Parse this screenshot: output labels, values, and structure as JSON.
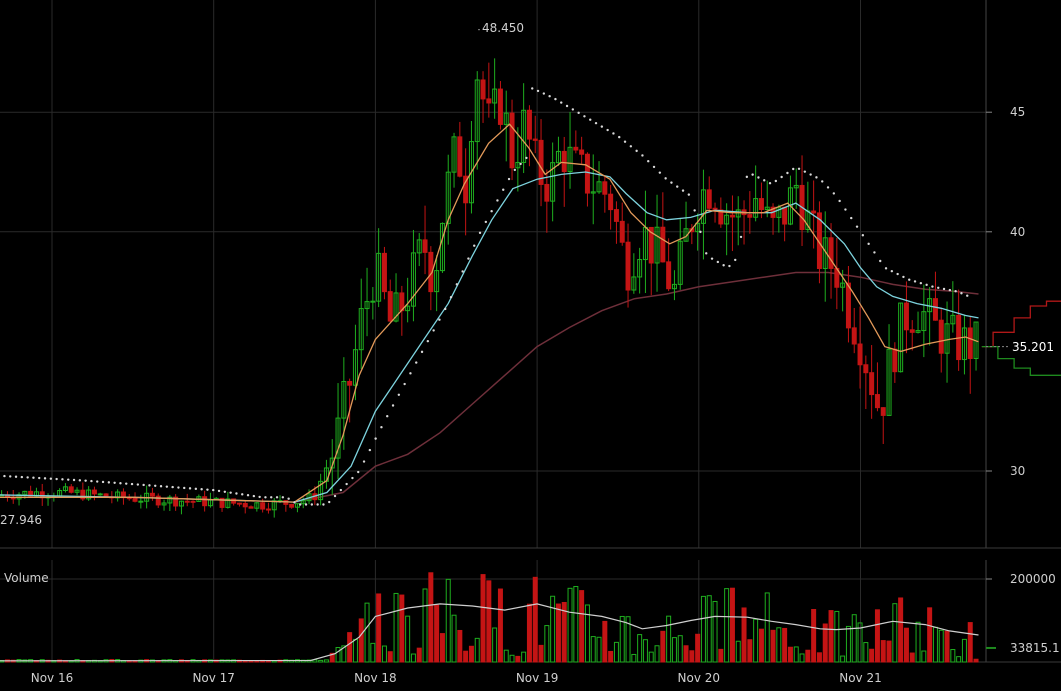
{
  "colors": {
    "background": "#000000",
    "grid": "#2a2a2a",
    "up": "#1fae1f",
    "down": "#c41414",
    "ema_fast": "#e39a5a",
    "ema_slow": "#7dd3de",
    "ma_long": "#6e2f3a",
    "sar": "#d8d8d8",
    "volume_ma": "#cfcfcf",
    "axis_text": "#cfcfcf",
    "depth_bid": "#1e8a1e",
    "depth_ask": "#b01818"
  },
  "chart_data": [
    {
      "type": "line",
      "subtype": "candlestick",
      "x_tick_labels": [
        "Nov 16",
        "Nov 17",
        "Nov 18",
        "Nov 19",
        "Nov 20",
        "Nov 21"
      ],
      "x_days": [
        16,
        17,
        18,
        19,
        20,
        21
      ],
      "x_range": [
        15.67,
        21.73
      ],
      "y_ticks": [
        30,
        40,
        45
      ],
      "ylim": [
        26.0,
        49.0
      ],
      "y_scale": "linear",
      "grid": true,
      "annotations": {
        "high_label": "48.450",
        "high_day": 18.63,
        "high_value": 48.45,
        "low_label": "27.946",
        "low_day": 15.67,
        "low_value": 27.946,
        "last_label": "35.201",
        "last_value": 35.201
      },
      "price_path": [
        [
          15.67,
          29.0
        ],
        [
          15.9,
          29.1
        ],
        [
          16.1,
          29.1
        ],
        [
          16.4,
          28.9
        ],
        [
          16.7,
          28.8
        ],
        [
          17.0,
          28.7
        ],
        [
          17.3,
          28.6
        ],
        [
          17.5,
          28.7
        ],
        [
          17.62,
          28.9
        ],
        [
          17.75,
          31.0
        ],
        [
          17.85,
          34.0
        ],
        [
          17.92,
          36.5
        ],
        [
          18.0,
          38.5
        ],
        [
          18.1,
          36.0
        ],
        [
          18.2,
          37.5
        ],
        [
          18.3,
          39.5
        ],
        [
          18.36,
          38.0
        ],
        [
          18.42,
          41.0
        ],
        [
          18.5,
          43.5
        ],
        [
          18.56,
          42.0
        ],
        [
          18.62,
          47.0
        ],
        [
          18.7,
          44.5
        ],
        [
          18.78,
          45.5
        ],
        [
          18.85,
          43.0
        ],
        [
          18.92,
          44.5
        ],
        [
          19.0,
          42.5
        ],
        [
          19.08,
          42.0
        ],
        [
          19.15,
          43.5
        ],
        [
          19.25,
          42.5
        ],
        [
          19.35,
          42.0
        ],
        [
          19.45,
          41.5
        ],
        [
          19.55,
          38.5
        ],
        [
          19.65,
          40.0
        ],
        [
          19.75,
          39.0
        ],
        [
          19.85,
          37.5
        ],
        [
          19.93,
          40.0
        ],
        [
          20.0,
          41.5
        ],
        [
          20.08,
          42.0
        ],
        [
          20.15,
          41.0
        ],
        [
          20.25,
          40.5
        ],
        [
          20.35,
          41.5
        ],
        [
          20.45,
          40.0
        ],
        [
          20.55,
          41.0
        ],
        [
          20.6,
          42.0
        ],
        [
          20.67,
          40.5
        ],
        [
          20.75,
          39.0
        ],
        [
          20.85,
          38.5
        ],
        [
          20.92,
          37.0
        ],
        [
          21.0,
          35.5
        ],
        [
          21.06,
          34.0
        ],
        [
          21.12,
          32.5
        ],
        [
          21.2,
          35.0
        ],
        [
          21.28,
          36.5
        ],
        [
          21.36,
          36.8
        ],
        [
          21.45,
          36.0
        ],
        [
          21.55,
          35.5
        ],
        [
          21.65,
          35.3
        ],
        [
          21.73,
          35.2
        ]
      ],
      "ema_fast_path": [
        [
          15.67,
          28.9
        ],
        [
          16.5,
          28.9
        ],
        [
          17.5,
          28.7
        ],
        [
          17.7,
          29.6
        ],
        [
          17.8,
          31.5
        ],
        [
          17.9,
          34.0
        ],
        [
          18.0,
          35.5
        ],
        [
          18.2,
          37.0
        ],
        [
          18.35,
          38.3
        ],
        [
          18.45,
          40.5
        ],
        [
          18.55,
          42.0
        ],
        [
          18.7,
          43.7
        ],
        [
          18.83,
          44.5
        ],
        [
          18.95,
          43.5
        ],
        [
          19.05,
          42.4
        ],
        [
          19.15,
          42.9
        ],
        [
          19.3,
          42.8
        ],
        [
          19.45,
          42.2
        ],
        [
          19.58,
          40.8
        ],
        [
          19.7,
          40.0
        ],
        [
          19.82,
          39.5
        ],
        [
          19.92,
          39.8
        ],
        [
          20.05,
          40.9
        ],
        [
          20.2,
          40.8
        ],
        [
          20.4,
          40.8
        ],
        [
          20.55,
          41.2
        ],
        [
          20.65,
          40.5
        ],
        [
          20.75,
          39.5
        ],
        [
          20.85,
          38.5
        ],
        [
          20.95,
          37.5
        ],
        [
          21.05,
          36.4
        ],
        [
          21.15,
          35.2
        ],
        [
          21.25,
          35.0
        ],
        [
          21.4,
          35.3
        ],
        [
          21.55,
          35.5
        ],
        [
          21.65,
          35.6
        ],
        [
          21.73,
          35.4
        ]
      ],
      "ema_slow_path": [
        [
          15.67,
          29.0
        ],
        [
          16.5,
          28.9
        ],
        [
          17.5,
          28.7
        ],
        [
          17.7,
          29.1
        ],
        [
          17.85,
          30.2
        ],
        [
          18.0,
          32.5
        ],
        [
          18.15,
          34.0
        ],
        [
          18.3,
          35.5
        ],
        [
          18.45,
          37.0
        ],
        [
          18.6,
          39.0
        ],
        [
          18.72,
          40.5
        ],
        [
          18.85,
          41.8
        ],
        [
          19.0,
          42.2
        ],
        [
          19.15,
          42.4
        ],
        [
          19.3,
          42.5
        ],
        [
          19.45,
          42.3
        ],
        [
          19.55,
          41.6
        ],
        [
          19.68,
          40.8
        ],
        [
          19.8,
          40.5
        ],
        [
          19.95,
          40.6
        ],
        [
          20.1,
          40.9
        ],
        [
          20.3,
          40.8
        ],
        [
          20.45,
          40.8
        ],
        [
          20.6,
          41.2
        ],
        [
          20.75,
          40.5
        ],
        [
          20.9,
          39.5
        ],
        [
          21.0,
          38.5
        ],
        [
          21.1,
          37.7
        ],
        [
          21.2,
          37.3
        ],
        [
          21.35,
          37.0
        ],
        [
          21.5,
          36.8
        ],
        [
          21.65,
          36.5
        ],
        [
          21.73,
          36.4
        ]
      ],
      "ma_long_path": [
        [
          17.5,
          28.7
        ],
        [
          17.8,
          29.1
        ],
        [
          18.0,
          30.2
        ],
        [
          18.2,
          30.7
        ],
        [
          18.4,
          31.6
        ],
        [
          18.6,
          32.8
        ],
        [
          18.8,
          34.0
        ],
        [
          19.0,
          35.2
        ],
        [
          19.2,
          36.0
        ],
        [
          19.4,
          36.7
        ],
        [
          19.6,
          37.2
        ],
        [
          19.8,
          37.4
        ],
        [
          20.0,
          37.7
        ],
        [
          20.2,
          37.9
        ],
        [
          20.4,
          38.1
        ],
        [
          20.6,
          38.3
        ],
        [
          20.8,
          38.3
        ],
        [
          21.0,
          38.1
        ],
        [
          21.2,
          37.8
        ],
        [
          21.4,
          37.6
        ],
        [
          21.6,
          37.5
        ],
        [
          21.73,
          37.4
        ]
      ],
      "sar_path": [
        [
          15.67,
          29.8
        ],
        [
          16.2,
          29.6
        ],
        [
          16.6,
          29.4
        ],
        [
          17.0,
          29.2
        ],
        [
          17.3,
          28.9
        ],
        [
          17.45,
          28.9
        ],
        [
          17.52,
          28.6
        ],
        [
          17.7,
          28.6
        ],
        [
          17.9,
          30.0
        ],
        [
          18.05,
          32.0
        ],
        [
          18.25,
          34.5
        ],
        [
          18.45,
          37.0
        ],
        [
          18.65,
          40.0
        ],
        [
          18.85,
          42.5
        ],
        [
          18.95,
          43.2
        ],
        [
          18.97,
          46.0
        ],
        [
          19.1,
          45.6
        ],
        [
          19.3,
          44.8
        ],
        [
          19.5,
          44.0
        ],
        [
          19.65,
          43.2
        ],
        [
          19.8,
          42.2
        ],
        [
          19.95,
          41.5
        ],
        [
          20.05,
          39.0
        ],
        [
          20.18,
          38.5
        ],
        [
          20.25,
          39.0
        ],
        [
          20.3,
          42.5
        ],
        [
          20.45,
          42.0
        ],
        [
          20.6,
          42.7
        ],
        [
          20.75,
          42.2
        ],
        [
          20.85,
          41.5
        ],
        [
          20.95,
          40.5
        ],
        [
          21.05,
          39.5
        ],
        [
          21.15,
          38.5
        ],
        [
          21.3,
          38.0
        ],
        [
          21.45,
          37.7
        ],
        [
          21.6,
          37.5
        ],
        [
          21.67,
          37.3
        ]
      ],
      "ask_depth": [
        [
          35.2,
          21.75
        ],
        [
          35.8,
          21.82
        ],
        [
          36.4,
          21.95
        ],
        [
          36.9,
          22.05
        ],
        [
          37.1,
          22.15
        ],
        [
          37.2,
          22.3
        ]
      ],
      "bid_depth": [
        [
          35.2,
          21.75
        ],
        [
          34.7,
          21.85
        ],
        [
          34.3,
          21.95
        ],
        [
          34.0,
          22.05
        ],
        [
          33.9,
          22.3
        ]
      ]
    },
    {
      "type": "bar",
      "title": "Volume",
      "ylim": [
        0,
        215000
      ],
      "y_ticks": [
        200000,
        33815.1
      ],
      "y_tick_labels": [
        "200000",
        "33815.1"
      ],
      "grid": true,
      "volume_path": [
        [
          15.67,
          3000
        ],
        [
          17.6,
          3500
        ],
        [
          17.75,
          20000
        ],
        [
          17.9,
          60000
        ],
        [
          18.0,
          110000
        ],
        [
          18.2,
          130000
        ],
        [
          18.4,
          140000
        ],
        [
          18.6,
          135000
        ],
        [
          18.8,
          125000
        ],
        [
          19.0,
          140000
        ],
        [
          19.2,
          120000
        ],
        [
          19.4,
          110000
        ],
        [
          19.55,
          95000
        ],
        [
          19.65,
          80000
        ],
        [
          19.8,
          88000
        ],
        [
          19.95,
          100000
        ],
        [
          20.1,
          110000
        ],
        [
          20.3,
          108000
        ],
        [
          20.45,
          98000
        ],
        [
          20.6,
          90000
        ],
        [
          20.75,
          80000
        ],
        [
          20.85,
          78000
        ],
        [
          21.0,
          82000
        ],
        [
          21.2,
          98000
        ],
        [
          21.4,
          90000
        ],
        [
          21.55,
          75000
        ],
        [
          21.73,
          65000
        ]
      ],
      "last_value": 33815.1
    }
  ]
}
